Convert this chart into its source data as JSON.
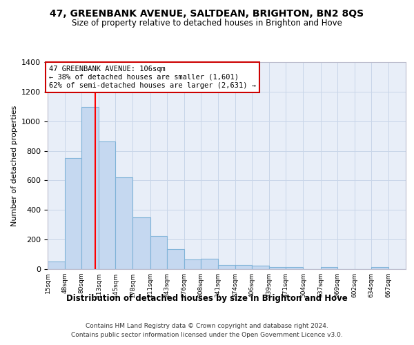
{
  "title": "47, GREENBANK AVENUE, SALTDEAN, BRIGHTON, BN2 8QS",
  "subtitle": "Size of property relative to detached houses in Brighton and Hove",
  "xlabel": "Distribution of detached houses by size in Brighton and Hove",
  "ylabel": "Number of detached properties",
  "footnote1": "Contains HM Land Registry data © Crown copyright and database right 2024.",
  "footnote2": "Contains public sector information licensed under the Open Government Licence v3.0.",
  "categories": [
    "15sqm",
    "48sqm",
    "80sqm",
    "113sqm",
    "145sqm",
    "178sqm",
    "211sqm",
    "243sqm",
    "276sqm",
    "308sqm",
    "341sqm",
    "374sqm",
    "406sqm",
    "439sqm",
    "471sqm",
    "504sqm",
    "537sqm",
    "569sqm",
    "602sqm",
    "634sqm",
    "667sqm"
  ],
  "values": [
    50,
    750,
    1095,
    865,
    620,
    350,
    225,
    135,
    65,
    70,
    30,
    30,
    22,
    15,
    15,
    0,
    12,
    0,
    0,
    12,
    0
  ],
  "bar_color": "#c5d8f0",
  "bar_edge_color": "#7fb3d8",
  "grid_color": "#c8d5e8",
  "background_color": "#e8eef8",
  "property_value": 106,
  "property_line_label": "47 GREENBANK AVENUE: 106sqm",
  "annotation_line1": "← 38% of detached houses are smaller (1,601)",
  "annotation_line2": "62% of semi-detached houses are larger (2,631) →",
  "annotation_box_edgecolor": "#cc0000",
  "bin_edges": [
    15,
    48,
    80,
    113,
    145,
    178,
    211,
    243,
    276,
    308,
    341,
    374,
    406,
    439,
    471,
    504,
    537,
    569,
    602,
    634,
    667,
    700
  ],
  "ylim": [
    0,
    1400
  ],
  "yticks": [
    0,
    200,
    400,
    600,
    800,
    1000,
    1200,
    1400
  ]
}
